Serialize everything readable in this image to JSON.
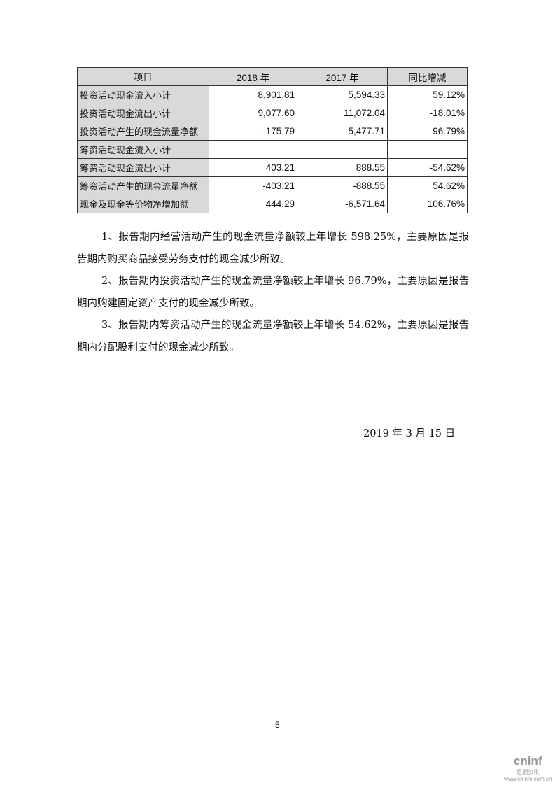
{
  "table": {
    "headers": [
      "项目",
      "2018 年",
      "2017 年",
      "同比增减"
    ],
    "rows": [
      [
        "投资活动现金流入小计",
        "8,901.81",
        "5,594.33",
        "59.12%"
      ],
      [
        "投资活动现金流出小计",
        "9,077.60",
        "11,072.04",
        "-18.01%"
      ],
      [
        "投资活动产生的现金流量净额",
        "-175.79",
        "-5,477.71",
        "96.79%"
      ],
      [
        "筹资活动现金流入小计",
        "",
        "",
        ""
      ],
      [
        "筹资活动现金流出小计",
        "403.21",
        "888.55",
        "-54.62%"
      ],
      [
        "筹资活动产生的现金流量净额",
        "-403.21",
        "-888.55",
        "54.62%"
      ],
      [
        "现金及现金等价物净增加额",
        "444.29",
        "-6,571.64",
        "106.76%"
      ]
    ]
  },
  "paragraphs": [
    "1、报告期内经营活动产生的现金流量净额较上年增长 598.25%，主要原因是报告期内购买商品接受劳务支付的现金减少所致。",
    "2、报告期内投资活动产生的现金流量净额较上年增长 96.79%，主要原因是报告期内购建固定资产支付的现金减少所致。",
    "3、报告期内筹资活动产生的现金流量净额较上年增长 54.62%，主要原因是报告期内分配股利支付的现金减少所致。"
  ],
  "date": "2019 年 3 月 15 日",
  "page_number": "5",
  "watermark": {
    "brand": "cninf",
    "name": "巨潮资讯",
    "url": "www.cninfo.com.cn"
  }
}
